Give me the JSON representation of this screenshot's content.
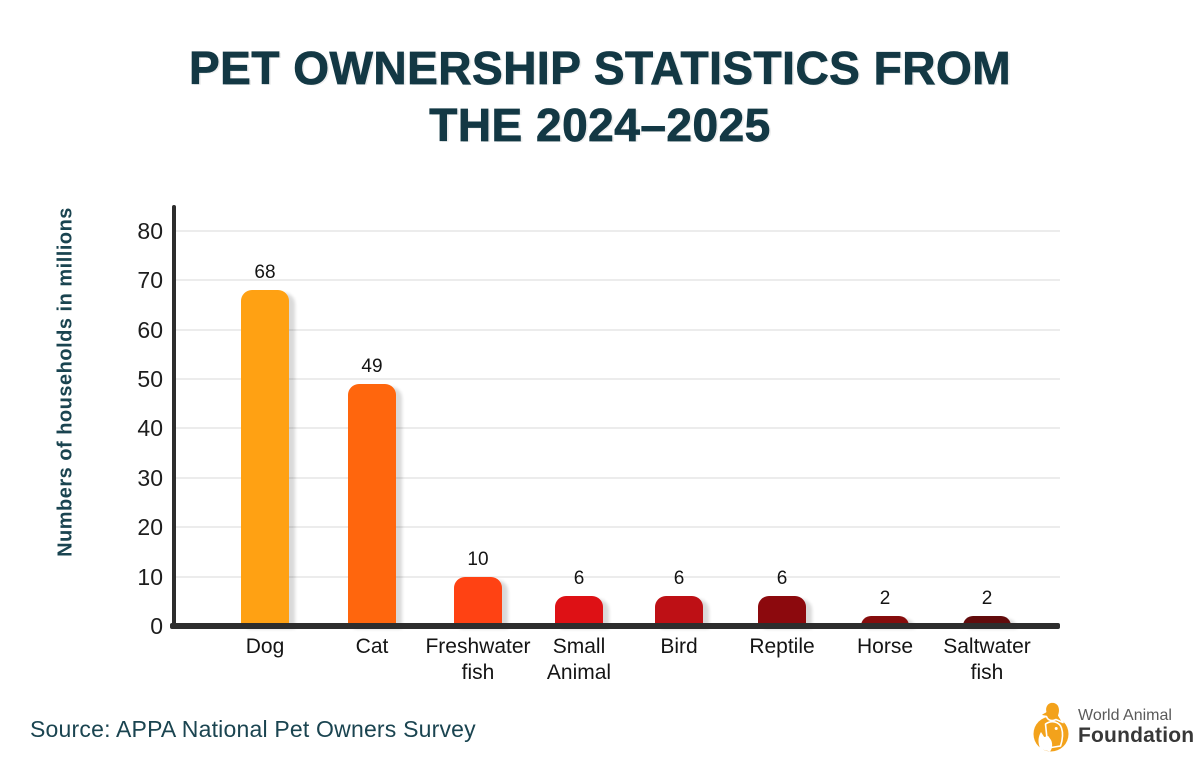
{
  "header": {
    "title_line1": "PET OWNERSHIP STATISTICS FROM",
    "title_line2": "THE 2024–2025"
  },
  "chart_data": {
    "type": "bar",
    "title": "PET OWNERSHIP STATISTICS FROM THE 2024–2025",
    "categories": [
      "Dog",
      "Cat",
      "Freshwater fish",
      "Small Animal",
      "Bird",
      "Reptile",
      "Horse",
      "Saltwater fish"
    ],
    "values": [
      68,
      49,
      10,
      6,
      6,
      6,
      2,
      2
    ],
    "bar_colors": [
      "#FFA113",
      "#FF660D",
      "#FF4213",
      "#DE1115",
      "#BE1015",
      "#8C090D",
      "#860C0C",
      "#620B0C"
    ],
    "ylabel": "Numbers of households in millions",
    "xlabel": "",
    "yticks": [
      0,
      10,
      20,
      30,
      40,
      50,
      60,
      70,
      80
    ],
    "ylim": [
      0,
      80
    ],
    "grid": true,
    "legend": false,
    "bar_value_labels_shown": true
  },
  "footer": {
    "source": "Source: APPA National Pet Owners Survey",
    "logo": {
      "line1": "World Animal",
      "line2": "Foundation"
    }
  },
  "colors": {
    "title_text": "#133844",
    "teal_text": "#1A4450",
    "axis_line": "#2D2D2D",
    "gridline": "#ECECEC",
    "brand_orange": "#F3A21B"
  }
}
